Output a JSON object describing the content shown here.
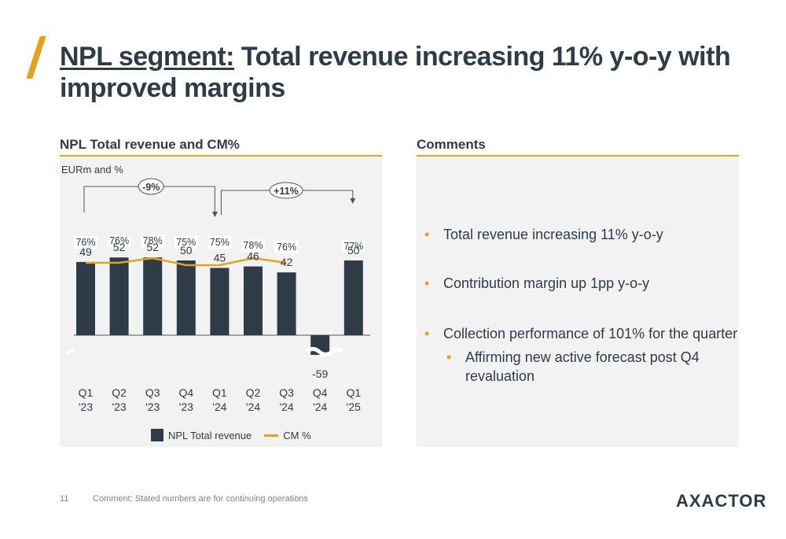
{
  "title": {
    "prefix": "NPL segment:",
    "rest": " Total revenue increasing 11% y-o-y with improved margins"
  },
  "left_section": {
    "title": "NPL Total revenue and CM%",
    "unit_label": "EURm and %"
  },
  "right_section": {
    "title": "Comments"
  },
  "comments": {
    "b1": "Total revenue increasing 11% y-o-y",
    "b2": "Contribution margin up 1pp y-o-y",
    "b3": "Collection performance of 101% for the quarter",
    "b4": "Affirming new active forecast post Q4 revaluation"
  },
  "legend": {
    "bar": "NPL Total revenue",
    "line": "CM %"
  },
  "colors": {
    "bar": "#2f3b47",
    "line": "#e0a420"
  },
  "chart_data": {
    "type": "bar",
    "categories": [
      [
        "Q1",
        "'23"
      ],
      [
        "Q2",
        "'23"
      ],
      [
        "Q3",
        "'23"
      ],
      [
        "Q4",
        "'23"
      ],
      [
        "Q1",
        "'24"
      ],
      [
        "Q2",
        "'24"
      ],
      [
        "Q3",
        "'24"
      ],
      [
        "Q4",
        "'24"
      ],
      [
        "Q1",
        "'25"
      ]
    ],
    "series": [
      {
        "name": "NPL Total revenue",
        "values": [
          49,
          52,
          52,
          50,
          45,
          46,
          42,
          -59,
          50
        ]
      },
      {
        "name": "CM %",
        "values": [
          76,
          76,
          78,
          75,
          75,
          78,
          76,
          null,
          77
        ]
      }
    ],
    "value_labels": [
      "49",
      "52",
      "52",
      "50",
      "45",
      "46",
      "42",
      "-59",
      "50"
    ],
    "cm_labels": [
      "76%",
      "76%",
      "78%",
      "75%",
      "75%",
      "78%",
      "76%",
      "",
      "77%"
    ],
    "annotations": [
      {
        "text": "-9%",
        "from": 0,
        "to": 4
      },
      {
        "text": "+11%",
        "from": 4,
        "to": 8
      }
    ],
    "axis_break": true
  },
  "footer": {
    "page_number": "11",
    "note": "Comment: Stated numbers are for continuing operations",
    "logo": "AXACTOR"
  }
}
